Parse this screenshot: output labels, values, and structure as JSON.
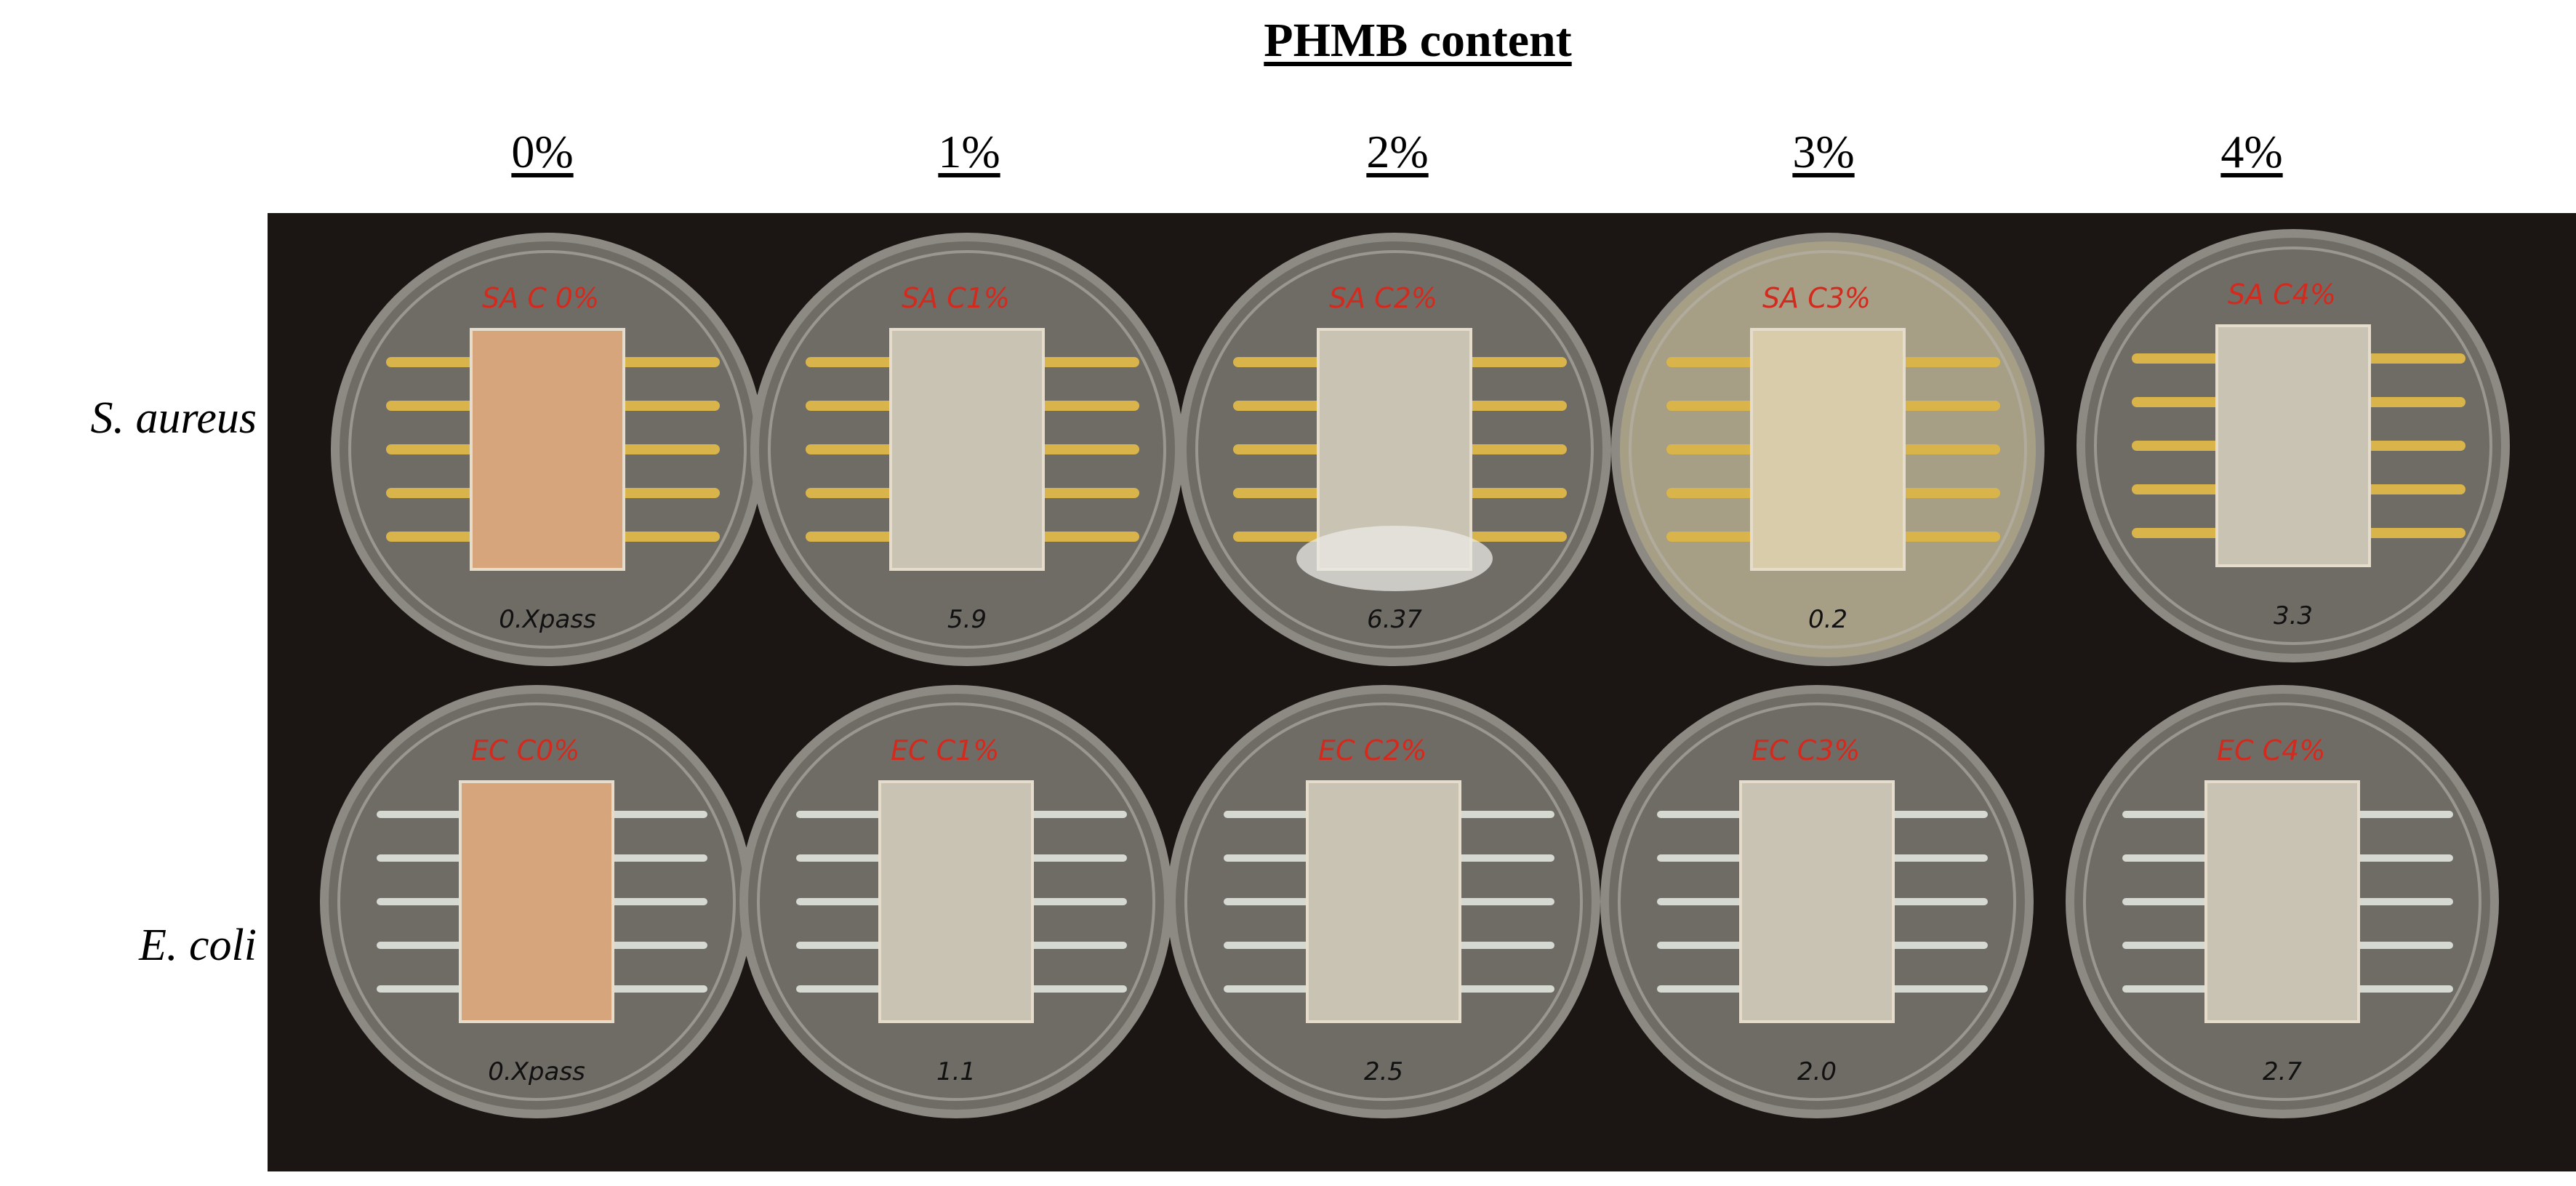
{
  "figure": {
    "title": "PHMB content",
    "concentrations": [
      "0%",
      "1%",
      "2%",
      "3%",
      "4%"
    ],
    "organisms": [
      "S. aureus",
      "E. coli"
    ]
  },
  "photo": {
    "background_color": "#1b1613",
    "streak_colors": {
      "S. aureus": "#d8b44a",
      "E. coli": "#d6d8d2"
    },
    "dish_labels": [
      [
        "0.Xpass",
        "5.9",
        "6.37",
        "0.2",
        "3.3"
      ],
      [
        "0.Xpass",
        "1.1",
        "2.5",
        "2.0",
        "2.7"
      ]
    ],
    "marker_labels": [
      [
        "SA C 0%",
        "SA C1%",
        "SA C2%",
        "SA C3%",
        "SA C4%"
      ],
      [
        "EC C0%",
        "EC C1%",
        "EC C2%",
        "EC C3%",
        "EC C4%"
      ]
    ]
  }
}
